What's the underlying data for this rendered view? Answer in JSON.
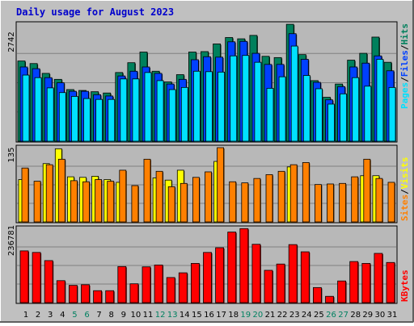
{
  "chart_data": [
    {
      "type": "bar",
      "title": "Daily usage for August 2023",
      "panel": "hits-files-pages",
      "categories": [
        "1",
        "2",
        "3",
        "4",
        "5",
        "6",
        "7",
        "8",
        "9",
        "10",
        "11",
        "12",
        "13",
        "14",
        "15",
        "16",
        "17",
        "18",
        "19",
        "20",
        "21",
        "22",
        "23",
        "24",
        "25",
        "26",
        "27",
        "28",
        "29",
        "30",
        "31"
      ],
      "weekend_days": [
        "5",
        "6",
        "12",
        "13",
        "19",
        "20",
        "26",
        "27"
      ],
      "ymax_label": "2742",
      "ylim": [
        0,
        2742
      ],
      "series": [
        {
          "name": "Hits",
          "color": "#00805c",
          "values": [
            1880,
            1820,
            1590,
            1450,
            1210,
            1190,
            1160,
            1130,
            1610,
            1840,
            2090,
            1640,
            1390,
            1560,
            2090,
            2100,
            2280,
            2430,
            2400,
            2480,
            1990,
            1960,
            2740,
            2030,
            1420,
            1030,
            1340,
            1900,
            2060,
            2440,
            1850
          ]
        },
        {
          "name": "Files",
          "color": "#0040ff",
          "values": [
            1740,
            1700,
            1490,
            1370,
            1170,
            1170,
            1090,
            1060,
            1530,
            1640,
            1740,
            1590,
            1340,
            1450,
            1910,
            1980,
            1970,
            2330,
            2340,
            2060,
            1800,
            1800,
            2520,
            1920,
            1380,
            970,
            1280,
            1740,
            1830,
            2000,
            1650
          ]
        },
        {
          "name": "Pages",
          "color": "#00e0ff",
          "values": [
            1550,
            1490,
            1250,
            1140,
            1050,
            1000,
            980,
            980,
            1460,
            1460,
            1610,
            1420,
            1210,
            1260,
            1640,
            1630,
            1620,
            2000,
            2010,
            1850,
            1240,
            1510,
            2230,
            1540,
            1230,
            870,
            1110,
            1490,
            1290,
            1920,
            1260
          ]
        }
      ]
    },
    {
      "type": "bar",
      "panel": "sites-visits",
      "categories": [
        "1",
        "2",
        "3",
        "4",
        "5",
        "6",
        "7",
        "8",
        "9",
        "10",
        "11",
        "12",
        "13",
        "14",
        "15",
        "16",
        "17",
        "18",
        "19",
        "20",
        "21",
        "22",
        "23",
        "24",
        "25",
        "26",
        "27",
        "28",
        "29",
        "30",
        "31"
      ],
      "ymax_label": "135",
      "ylim": [
        0,
        135
      ],
      "series": [
        {
          "name": "Visits",
          "color": "#ffff00",
          "values": [
            77,
            0,
            106,
            133,
            82,
            81,
            83,
            77,
            72,
            0,
            0,
            80,
            76,
            94,
            0,
            0,
            110,
            0,
            0,
            0,
            0,
            0,
            100,
            0,
            0,
            0,
            0,
            0,
            84,
            84,
            0
          ]
        },
        {
          "name": "Sites",
          "color": "#ff8000",
          "values": [
            98,
            74,
            104,
            114,
            75,
            73,
            77,
            74,
            94,
            66,
            114,
            92,
            64,
            70,
            81,
            91,
            135,
            73,
            71,
            79,
            86,
            92,
            104,
            108,
            68,
            69,
            70,
            82,
            114,
            79,
            72
          ]
        }
      ]
    },
    {
      "type": "bar",
      "panel": "kbytes",
      "categories": [
        "1",
        "2",
        "3",
        "4",
        "5",
        "6",
        "7",
        "8",
        "9",
        "10",
        "11",
        "12",
        "13",
        "14",
        "15",
        "16",
        "17",
        "18",
        "19",
        "20",
        "21",
        "22",
        "23",
        "24",
        "25",
        "26",
        "27",
        "28",
        "29",
        "30",
        "31"
      ],
      "ymax_label": "236781",
      "ylim": [
        0,
        236781
      ],
      "series": [
        {
          "name": "KBytes",
          "color": "#ff0000",
          "values": [
            165000,
            160000,
            134000,
            70000,
            55000,
            57000,
            38000,
            38000,
            115000,
            60000,
            114000,
            120000,
            80000,
            95000,
            125000,
            160000,
            175000,
            225000,
            236000,
            186000,
            103000,
            123000,
            185000,
            162000,
            48000,
            20000,
            69000,
            131000,
            125000,
            157000,
            128000
          ]
        }
      ]
    }
  ]
}
